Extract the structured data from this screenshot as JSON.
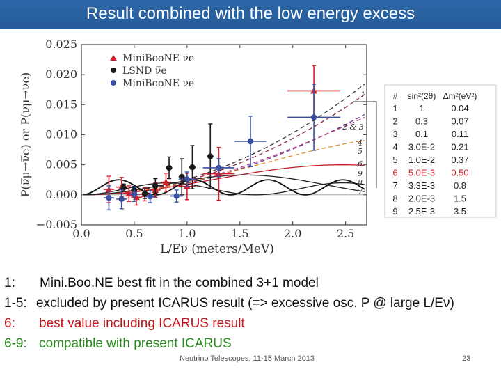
{
  "slide": {
    "title": "Result combined with the low energy excess",
    "footer": "Neutrino Telescopes, 11-15 March 2013",
    "page_number": "23",
    "colors": {
      "title_bg": "#2a62a3",
      "red_text": "#c0151a",
      "green_text": "#2a8a1e"
    }
  },
  "notes": [
    {
      "num": "1:",
      "text": "Mini.Boo.NE best fit in the combined 3+1 model",
      "color": "#111111"
    },
    {
      "num": "1-5:",
      "text": "excluded by present ICARUS result  (=> excessive osc. P @ large L/Eν)",
      "color": "#111111"
    },
    {
      "num": "6:",
      "text": "best value including ICARUS result",
      "color": "#c0151a"
    },
    {
      "num": "6-9:",
      "text": "compatible with present ICARUS",
      "color": "#2a8a1e"
    }
  ],
  "chart_data": {
    "type": "scatter",
    "xlabel": "L/Eν (meters/MeV)",
    "ylabel": "P(ν̅μ→ν̅e) or P(νμ→νe)",
    "xlim": [
      0.0,
      2.7
    ],
    "ylim": [
      -0.005,
      0.025
    ],
    "x_ticks": [
      0.0,
      0.5,
      1.0,
      1.5,
      2.0,
      2.5
    ],
    "x_tick_labels": [
      "0.0",
      "0.5",
      "1.0",
      "1.5",
      "2.0",
      "2.5"
    ],
    "y_ticks": [
      -0.005,
      0.0,
      0.005,
      0.01,
      0.015,
      0.02,
      0.025
    ],
    "y_tick_labels": [
      "−0.005",
      "0.000",
      "0.005",
      "0.010",
      "0.015",
      "0.020",
      "0.025"
    ],
    "legend": [
      {
        "label": "MiniBooNE ν̅e",
        "marker": "triangle",
        "color": "#d0202c"
      },
      {
        "label": "LSND ν̅e",
        "marker": "circle",
        "color": "#1a1a1a"
      },
      {
        "label": "MiniBooNE νe",
        "marker": "circle",
        "color": "#3a4fa0"
      }
    ],
    "series": [
      {
        "name": "MiniBooNE ν̅e",
        "marker": "triangle",
        "color": "#d0202c",
        "points": [
          {
            "x": 0.26,
            "y": 0.0009,
            "xerr": 0.05,
            "yerr": 0.0022
          },
          {
            "x": 0.38,
            "y": 0.0013,
            "xerr": 0.05,
            "yerr": 0.0016
          },
          {
            "x": 0.45,
            "y": 0.0002,
            "xerr": 0.05,
            "yerr": 0.0013
          },
          {
            "x": 0.52,
            "y": -0.0004,
            "xerr": 0.05,
            "yerr": 0.0013
          },
          {
            "x": 0.6,
            "y": 0.0001,
            "xerr": 0.05,
            "yerr": 0.0011
          },
          {
            "x": 0.7,
            "y": 0.0008,
            "xerr": 0.05,
            "yerr": 0.0012
          },
          {
            "x": 0.8,
            "y": 0.0021,
            "xerr": 0.05,
            "yerr": 0.0015
          },
          {
            "x": 1.0,
            "y": 0.0014,
            "xerr": 0.08,
            "yerr": 0.0022
          },
          {
            "x": 1.3,
            "y": 0.0035,
            "xerr": 0.15,
            "yerr": 0.0044
          },
          {
            "x": 2.2,
            "y": 0.0173,
            "xerr": 0.25,
            "yerr": 0.0042
          }
        ]
      },
      {
        "name": "LSND ν̅e",
        "marker": "circle",
        "color": "#1a1a1a",
        "points": [
          {
            "x": 0.4,
            "y": 0.0012,
            "xerr": 0.03,
            "yerr": 0.0006
          },
          {
            "x": 0.5,
            "y": 0.0008,
            "xerr": 0.03,
            "yerr": 0.0006
          },
          {
            "x": 0.6,
            "y": 0.0002,
            "xerr": 0.03,
            "yerr": 0.0008
          },
          {
            "x": 0.7,
            "y": 0.0015,
            "xerr": 0.03,
            "yerr": 0.0012
          },
          {
            "x": 0.83,
            "y": 0.0045,
            "xerr": 0.03,
            "yerr": 0.0018
          },
          {
            "x": 0.95,
            "y": 0.003,
            "xerr": 0.03,
            "yerr": 0.003
          },
          {
            "x": 1.05,
            "y": 0.0046,
            "xerr": 0.03,
            "yerr": 0.0036
          },
          {
            "x": 1.22,
            "y": 0.0064,
            "xerr": 0.03,
            "yerr": 0.0054
          }
        ]
      },
      {
        "name": "MiniBooNE νe",
        "marker": "circle",
        "color": "#3a4fa0",
        "points": [
          {
            "x": 0.26,
            "y": -0.0005,
            "xerr": 0.05,
            "yerr": 0.002
          },
          {
            "x": 0.38,
            "y": -0.0007,
            "xerr": 0.05,
            "yerr": 0.0016
          },
          {
            "x": 0.5,
            "y": 0.0001,
            "xerr": 0.05,
            "yerr": 0.0012
          },
          {
            "x": 0.65,
            "y": -0.0003,
            "xerr": 0.05,
            "yerr": 0.001
          },
          {
            "x": 0.9,
            "y": -0.0002,
            "xerr": 0.06,
            "yerr": 0.001
          },
          {
            "x": 1.0,
            "y": 0.0026,
            "xerr": 0.08,
            "yerr": 0.0012
          },
          {
            "x": 1.3,
            "y": 0.0045,
            "xerr": 0.15,
            "yerr": 0.0015
          },
          {
            "x": 1.6,
            "y": 0.0089,
            "xerr": 0.15,
            "yerr": 0.0042
          },
          {
            "x": 2.2,
            "y": 0.0129,
            "xerr": 0.25,
            "yerr": 0.0055
          }
        ]
      }
    ],
    "curves": [
      {
        "label": "1",
        "sin2": 1.0,
        "dm2": 0.04,
        "color": "#333333",
        "dash": "6,4"
      },
      {
        "label": "2",
        "sin2": 0.3,
        "dm2": 0.07,
        "color": "#8a2a3a",
        "dash": "6,4"
      },
      {
        "label": "3",
        "sin2": 0.1,
        "dm2": 0.11,
        "color": "#6a3a9a",
        "dash": "6,4"
      },
      {
        "label": "4",
        "sin2": 0.03,
        "dm2": 0.21,
        "color": "#b0407a",
        "dash": "6,4"
      },
      {
        "label": "5",
        "sin2": 0.01,
        "dm2": 0.37,
        "color": "#e0902a",
        "dash": "6,4"
      },
      {
        "label": "6",
        "sin2": 0.005,
        "dm2": 0.5,
        "color": "#c8182a",
        "dash": ""
      },
      {
        "label": "7",
        "sin2": 0.0033,
        "dm2": 0.8,
        "color": "#222222",
        "dash": ""
      },
      {
        "label": "8",
        "sin2": 0.002,
        "dm2": 1.5,
        "color": "#222222",
        "dash": ""
      },
      {
        "label": "9",
        "sin2": 0.0025,
        "dm2": 3.5,
        "color": "#111111",
        "dash": ""
      }
    ],
    "curve_labels": [
      "1",
      "2 & 3",
      "4",
      "5",
      "6",
      "9",
      "8",
      "7"
    ],
    "param_table": {
      "headers": [
        "#",
        "sin²(2θ)",
        "Δm²(eV²)"
      ],
      "rows": [
        {
          "num": "1",
          "sin2": "1",
          "dm2": "0.04",
          "color": "#222222"
        },
        {
          "num": "2",
          "sin2": "0.3",
          "dm2": "0.07",
          "color": "#222222"
        },
        {
          "num": "3",
          "sin2": "0.1",
          "dm2": "0.11",
          "color": "#222222"
        },
        {
          "num": "4",
          "sin2": "3.0E-2",
          "dm2": "0.21",
          "color": "#222222"
        },
        {
          "num": "5",
          "sin2": "1.0E-2",
          "dm2": "0.37",
          "color": "#222222"
        },
        {
          "num": "6",
          "sin2": "5.0E-3",
          "dm2": "0.50",
          "color": "#d0202c"
        },
        {
          "num": "7",
          "sin2": "3.3E-3",
          "dm2": "0.8",
          "color": "#222222"
        },
        {
          "num": "8",
          "sin2": "2.0E-3",
          "dm2": "1.5",
          "color": "#222222"
        },
        {
          "num": "9",
          "sin2": "2.5E-3",
          "dm2": "3.5",
          "color": "#222222"
        }
      ]
    }
  }
}
